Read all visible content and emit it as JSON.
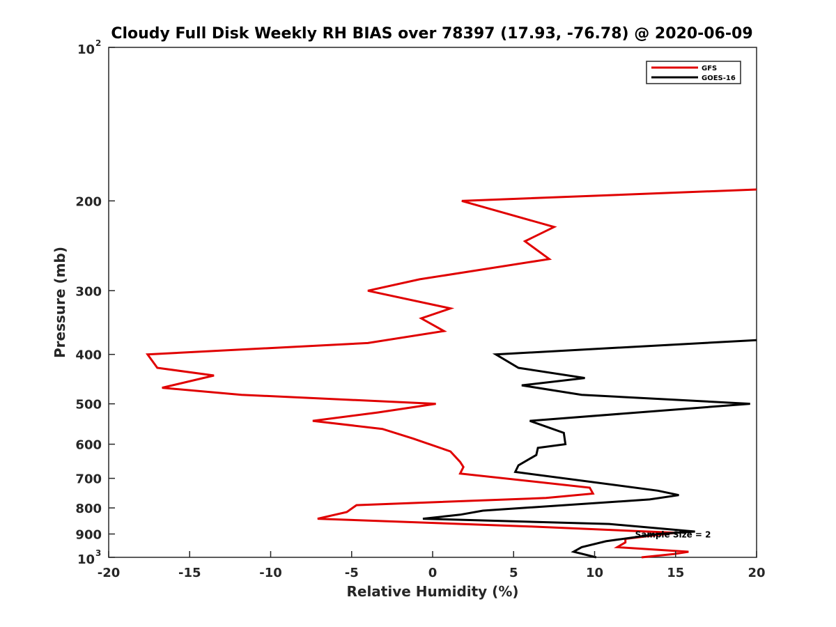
{
  "chart_data": {
    "type": "line",
    "orientation": "vertical-profile",
    "title": "Cloudy Full Disk Weekly RH BIAS over 78397 (17.93, -76.78) @ 2020-06-09",
    "xlabel": "Relative Humidity (%)",
    "ylabel": "Pressure (mb)",
    "xlim": [
      -20,
      20
    ],
    "ylim": [
      100,
      1000
    ],
    "y_scale": "log",
    "y_reversed": true,
    "grid": false,
    "legend_position": "top-right",
    "x_ticks": [
      "-20",
      "-15",
      "-10",
      "-5",
      "0",
      "5",
      "10",
      "15",
      "20"
    ],
    "y_ticks": [
      {
        "value": 100,
        "label": "10",
        "exp": "2"
      },
      {
        "value": 200,
        "label": "200"
      },
      {
        "value": 300,
        "label": "300"
      },
      {
        "value": 400,
        "label": "400"
      },
      {
        "value": 500,
        "label": "500"
      },
      {
        "value": 600,
        "label": "600"
      },
      {
        "value": 700,
        "label": "700"
      },
      {
        "value": 800,
        "label": "800"
      },
      {
        "value": 900,
        "label": "900"
      },
      {
        "value": 1000,
        "label": "10",
        "exp": "3"
      }
    ],
    "annotation": {
      "text": "Sample Size = 2",
      "x": 12.5,
      "y": 900
    },
    "series": [
      {
        "name": "GFS",
        "color": "#e00000",
        "points": [
          [
            20,
            190
          ],
          [
            1.8,
            200
          ],
          [
            7.5,
            225
          ],
          [
            5.7,
            240
          ],
          [
            7.2,
            260
          ],
          [
            -0.8,
            285
          ],
          [
            -4,
            300
          ],
          [
            1.1,
            325
          ],
          [
            -0.7,
            340
          ],
          [
            0.7,
            360
          ],
          [
            -4,
            380
          ],
          [
            -17.6,
            400
          ],
          [
            -17,
            425
          ],
          [
            -13.5,
            440
          ],
          [
            -16.7,
            465
          ],
          [
            -11.8,
            480
          ],
          [
            0.2,
            500
          ],
          [
            -3.4,
            520
          ],
          [
            -7.4,
            540
          ],
          [
            -3.1,
            560
          ],
          [
            -1.2,
            585
          ],
          [
            -0.2,
            600
          ],
          [
            1.1,
            620
          ],
          [
            1.7,
            650
          ],
          [
            1.9,
            665
          ],
          [
            1.7,
            685
          ],
          [
            9.7,
            730
          ],
          [
            9.9,
            750
          ],
          [
            7,
            765
          ],
          [
            -4.7,
            790
          ],
          [
            -5.3,
            815
          ],
          [
            -7.1,
            840
          ],
          [
            6,
            870
          ],
          [
            15,
            895
          ],
          [
            11.9,
            920
          ],
          [
            11.9,
            935
          ],
          [
            11.4,
            955
          ],
          [
            15.8,
            975
          ],
          [
            14.9,
            985
          ],
          [
            12.9,
            1000
          ]
        ]
      },
      {
        "name": "GOES-16",
        "color": "#000000",
        "points": [
          [
            20,
            375
          ],
          [
            3.9,
            400
          ],
          [
            5.3,
            425
          ],
          [
            9.4,
            445
          ],
          [
            5.5,
            460
          ],
          [
            9.2,
            480
          ],
          [
            19.6,
            500
          ],
          [
            6,
            540
          ],
          [
            8.1,
            570
          ],
          [
            8.2,
            600
          ],
          [
            6.5,
            610
          ],
          [
            6.4,
            630
          ],
          [
            5.3,
            660
          ],
          [
            5.1,
            680
          ],
          [
            13.9,
            740
          ],
          [
            15.2,
            755
          ],
          [
            13.4,
            770
          ],
          [
            3.1,
            810
          ],
          [
            1.7,
            825
          ],
          [
            -0.6,
            840
          ],
          [
            10.9,
            860
          ],
          [
            16.2,
            890
          ],
          [
            13.9,
            900
          ],
          [
            10.7,
            930
          ],
          [
            9.2,
            955
          ],
          [
            8.7,
            975
          ],
          [
            10.1,
            1000
          ]
        ]
      }
    ]
  }
}
